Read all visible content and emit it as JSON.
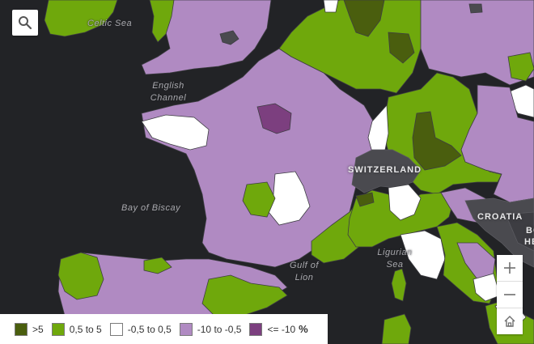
{
  "colors": {
    "sea": "#222326",
    "gt5": "#4a5e0e",
    "p05to5": "#6fa80c",
    "m05to05": "#ffffff",
    "m10tom05": "#b08ac2",
    "le_m10": "#7c3f7f",
    "nodata": "#4a4a4f"
  },
  "labels": {
    "celtic_sea": "Celtic Sea",
    "english_channel": "English Channel",
    "bay_of_biscay": "Bay of Biscay",
    "gulf_of_lion": "Gulf of Lion",
    "ligurian_sea": "Ligurian Sea",
    "switzerland": "SWITZERLAND",
    "croatia": "CROATIA",
    "bo_partial": "BO",
    "he_partial": "HE"
  },
  "icons": {
    "search": "search-icon",
    "zoom_in": "plus-icon",
    "zoom_out": "minus-icon",
    "home": "home-icon"
  },
  "legend": {
    "items": [
      {
        "label": ">5",
        "color": "#4a5e0e"
      },
      {
        "label": "0,5 to 5",
        "color": "#6fa80c"
      },
      {
        "label": "-0,5 to 0,5",
        "color": "#ffffff"
      },
      {
        "label": "-10 to -0,5",
        "color": "#b08ac2"
      },
      {
        "label": "<= -10",
        "color": "#7c3f7f"
      }
    ],
    "unit": "%"
  },
  "zoom": {
    "in_label": "+",
    "out_label": "−"
  }
}
